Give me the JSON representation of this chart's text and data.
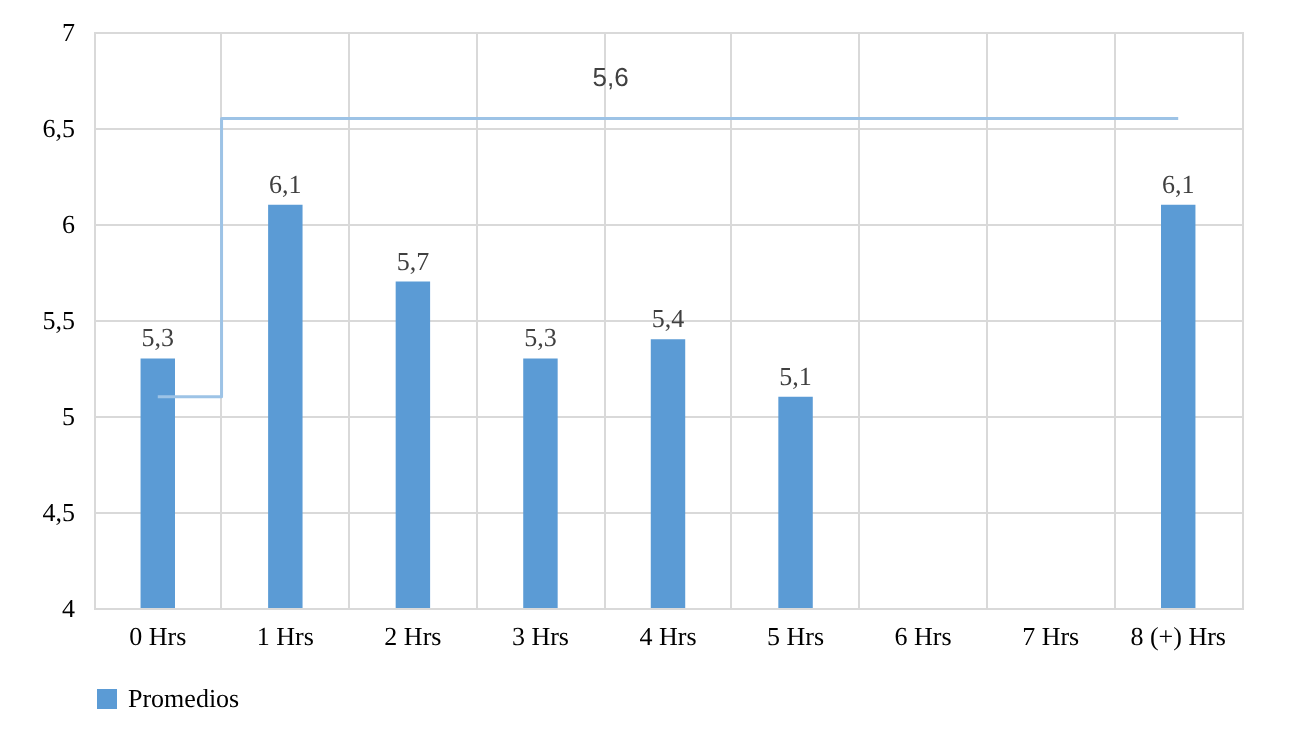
{
  "chart_data": {
    "type": "bar",
    "categories": [
      "0 Hrs",
      "1 Hrs",
      "2 Hrs",
      "3 Hrs",
      "4 Hrs",
      "5 Hrs",
      "6 Hrs",
      "7 Hrs",
      "8 (+) Hrs"
    ],
    "series": [
      {
        "name": "Promedios",
        "color": "#5b9bd5",
        "values": [
          5.3,
          6.1,
          5.7,
          5.3,
          5.4,
          5.1,
          null,
          null,
          6.1
        ],
        "value_labels": [
          "5,3",
          "6,1",
          "5,7",
          "5,3",
          "5,4",
          "5,1",
          null,
          null,
          "6,1"
        ]
      },
      {
        "type": "step",
        "color": "#9dc3e6",
        "values": [
          5.1,
          6.55,
          6.55,
          6.55,
          6.55,
          6.55,
          6.55,
          6.55,
          6.55
        ]
      }
    ],
    "annotations": [
      "5,6"
    ],
    "ylim": [
      4,
      7
    ],
    "yticks": [
      4,
      {
        "value": 4.5,
        "label": "4,5"
      },
      5,
      {
        "value": 5.5,
        "label": "5,5"
      },
      6,
      {
        "value": 6.5,
        "label": "6,5"
      },
      7
    ],
    "grid": true,
    "legend": "bottom"
  }
}
